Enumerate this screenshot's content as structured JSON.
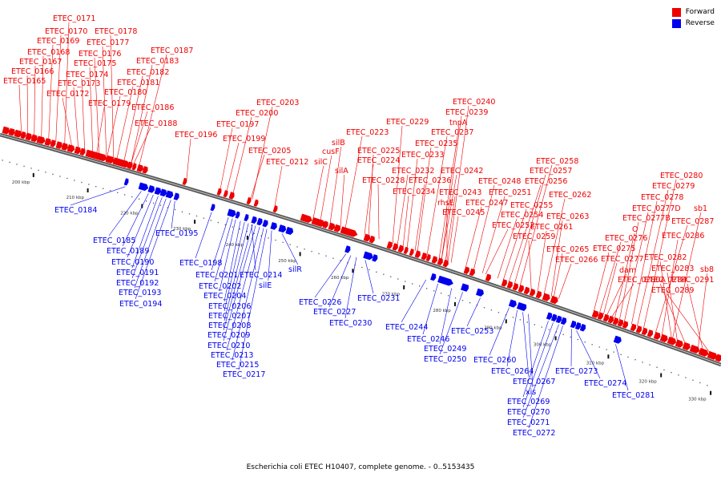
{
  "legend": {
    "forward": {
      "label": "Forward",
      "color": "#ee0000"
    },
    "reverse": {
      "label": "Reverse",
      "color": "#0000ee"
    }
  },
  "caption": "Escherichia coli ETEC H10407, complete genome. - 0..5153435",
  "axis_ticks": [
    "200 kbp",
    "210 kbp",
    "220 kbp",
    "230 kbp",
    "240 kbp",
    "250 kbp",
    "260 kbp",
    "270 kbp",
    "280 kbp",
    "290 kbp",
    "300 kbp",
    "310 kbp",
    "320 kbp",
    "330 kbp"
  ],
  "forward_labels": [
    "ETEC_0165",
    "ETEC_0166",
    "ETEC_0167",
    "ETEC_0168",
    "ETEC_0169",
    "ETEC_0170",
    "ETEC_0171",
    "ETEC_0172",
    "ETEC_0173",
    "ETEC_0174",
    "ETEC_0175",
    "ETEC_0176",
    "ETEC_0177",
    "ETEC_0178",
    "ETEC_0179",
    "ETEC_0180",
    "ETEC_0181",
    "ETEC_0182",
    "ETEC_0183",
    "ETEC_0187",
    "ETEC_0186",
    "ETEC_0188",
    "ETEC_0196",
    "ETEC_0197",
    "ETEC_0199",
    "ETEC_0200",
    "ETEC_0203",
    "ETEC_0205",
    "ETEC_0212",
    "silC",
    "cusF",
    "silB",
    "ETEC_0223",
    "silA",
    "ETEC_0224",
    "ETEC_0225",
    "ETEC_0228",
    "ETEC_0229",
    "ETEC_0232",
    "ETEC_0233",
    "ETEC_0234",
    "ETEC_0235",
    "ETEC_0236",
    "ETEC_0237",
    "tnpA",
    "ETEC_0239",
    "ETEC_0240",
    "ETEC_0242",
    "ETEC_0243",
    "rhsE",
    "ETEC_0245",
    "ETEC_0247",
    "ETEC_0248",
    "ETEC_0251",
    "ETEC_0252",
    "ETEC_0254",
    "ETEC_0255",
    "ETEC_0256",
    "ETEC_0257",
    "ETEC_0258",
    "ETEC_0259",
    "ETEC_0261",
    "ETEC_0262",
    "ETEC_0263",
    "ETEC_0265",
    "ETEC_0266",
    "ETEC_0275",
    "ETEC_0276",
    "ETEC_0277",
    "dam",
    "ETEC_0280A",
    "O",
    "ETEC_0277B",
    "ETEC_0277D",
    "ETEC_0278",
    "ETEC_0279",
    "ETEC_0280",
    "sb1",
    "ETEC_0287",
    "ETEC_0286",
    "ETEC_0282",
    "ETEC_0283",
    "ETEC_0284",
    "sb8",
    "ETEC_0291",
    "ETEC_0289"
  ],
  "reverse_labels": [
    "ETEC_0184",
    "ETEC_0185",
    "ETEC_0189",
    "ETEC_0190",
    "ETEC_0191",
    "ETEC_0192",
    "ETEC_0193",
    "ETEC_0194",
    "ETEC_0195",
    "ETEC_0198",
    "ETEC_0201",
    "ETEC_0202",
    "ETEC_0204",
    "ETEC_0206",
    "ETEC_0207",
    "ETEC_0208",
    "ETEC_0209",
    "ETEC_0210",
    "ETEC_0213",
    "ETEC_0215",
    "ETEC_0217",
    "ETEC_0214",
    "silE",
    "silR",
    "ETEC_0226",
    "ETEC_0227",
    "ETEC_0230",
    "ETEC_0231",
    "ETEC_0244",
    "ETEC_0246",
    "ETEC_0249",
    "ETEC_0250",
    "ETEC_0253",
    "ETEC_0260",
    "ETEC_0264",
    "ETEC_0267",
    "xis",
    "ETEC_0269",
    "ETEC_0270",
    "ETEC_0271",
    "ETEC_0272",
    "ETEC_0273",
    "ETEC_0274",
    "ETEC_0281"
  ]
}
